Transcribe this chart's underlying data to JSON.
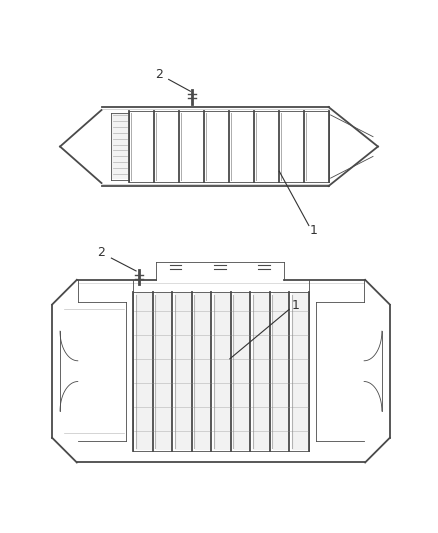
{
  "background_color": "#ffffff",
  "line_color": "#4a4a4a",
  "shadow_color": "#888888",
  "light_color": "#d8d8d8",
  "label_color": "#333333",
  "fig_width": 4.38,
  "fig_height": 5.33,
  "dpi": 100
}
